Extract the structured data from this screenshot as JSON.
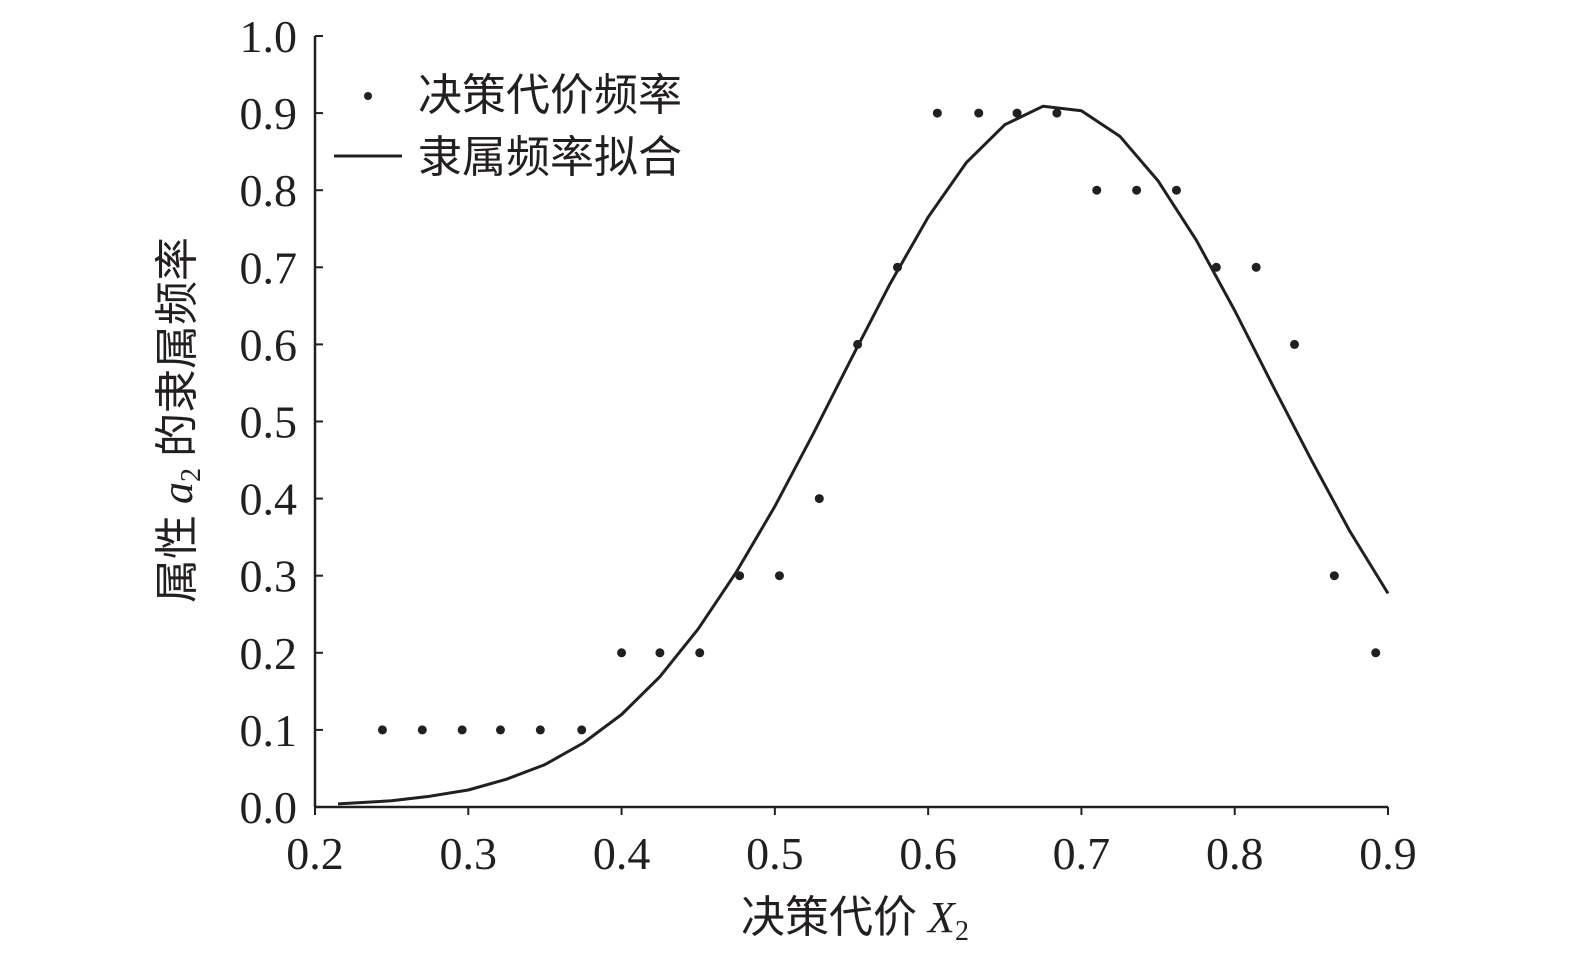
{
  "chart_data": {
    "type": "scatter",
    "xlabel": "决策代价 X₂",
    "xlabel_parts": {
      "text": "决策代价 ",
      "var": "X",
      "sub": "2"
    },
    "ylabel": "属性 a₂ 的隶属频率",
    "ylabel_parts": {
      "pre": "属性 ",
      "var": "a",
      "sub": "2",
      "post": " 的隶属频率"
    },
    "xlim": [
      0.2,
      0.9
    ],
    "ylim": [
      0.0,
      1.0
    ],
    "xticks": [
      "0.2",
      "0.3",
      "0.4",
      "0.5",
      "0.6",
      "0.7",
      "0.8",
      "0.9"
    ],
    "yticks": [
      "0.0",
      "0.1",
      "0.2",
      "0.3",
      "0.4",
      "0.5",
      "0.6",
      "0.7",
      "0.8",
      "0.9",
      "1.0"
    ],
    "grid": false,
    "legend_position": "top-left",
    "color": "#231f20",
    "series": [
      {
        "name": "决策代价频率",
        "type": "scatter",
        "x": [
          0.244,
          0.27,
          0.296,
          0.321,
          0.347,
          0.374,
          0.4,
          0.425,
          0.451,
          0.477,
          0.503,
          0.529,
          0.554,
          0.58,
          0.606,
          0.633,
          0.658,
          0.684,
          0.71,
          0.736,
          0.762,
          0.788,
          0.814,
          0.839,
          0.865,
          0.892
        ],
        "y": [
          0.1,
          0.1,
          0.1,
          0.1,
          0.1,
          0.1,
          0.2,
          0.2,
          0.2,
          0.3,
          0.3,
          0.4,
          0.6,
          0.7,
          0.9,
          0.9,
          0.9,
          0.9,
          0.8,
          0.8,
          0.8,
          0.7,
          0.7,
          0.6,
          0.3,
          0.2
        ]
      },
      {
        "name": "隶属频率拟合",
        "type": "line",
        "x": [
          0.215,
          0.25,
          0.275,
          0.3,
          0.325,
          0.35,
          0.375,
          0.4,
          0.425,
          0.45,
          0.475,
          0.5,
          0.525,
          0.55,
          0.575,
          0.6,
          0.625,
          0.65,
          0.675,
          0.7,
          0.725,
          0.75,
          0.775,
          0.8,
          0.825,
          0.85,
          0.875,
          0.9
        ],
        "y": [
          0.004,
          0.008,
          0.014,
          0.022,
          0.036,
          0.055,
          0.083,
          0.12,
          0.169,
          0.231,
          0.305,
          0.39,
          0.484,
          0.582,
          0.678,
          0.765,
          0.836,
          0.885,
          0.909,
          0.903,
          0.87,
          0.812,
          0.735,
          0.644,
          0.546,
          0.45,
          0.358,
          0.277
        ]
      }
    ]
  }
}
